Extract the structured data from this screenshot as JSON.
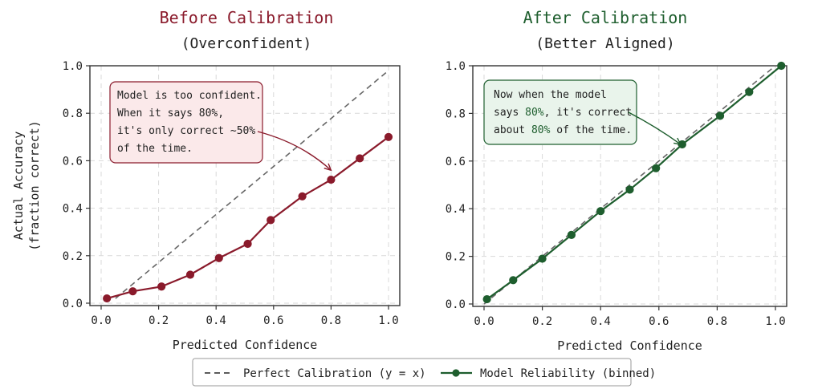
{
  "colors": {
    "before": "#8a1a2b",
    "after": "#1e5e2e",
    "perfect": "#666666",
    "grid": "#d9d9d9",
    "before_box_fill": "#fbe9ea",
    "after_box_fill": "#e9f4eb"
  },
  "chart_data": [
    {
      "type": "line",
      "title": "Before Calibration",
      "subtitle": "(Overconfident)",
      "xlabel": "Predicted Confidence",
      "ylabel": [
        "Actual Accuracy",
        "(fraction correct)"
      ],
      "xlim": [
        0,
        1.0
      ],
      "ylim": [
        0,
        1.0
      ],
      "xticks": [
        "0.0",
        "0.2",
        "0.4",
        "0.6",
        "0.8",
        "1.0"
      ],
      "yticks": [
        "0.0",
        "0.2",
        "0.4",
        "0.6",
        "0.8",
        "1.0"
      ],
      "grid": true,
      "diagonal": {
        "from": [
          0.05,
          0.02
        ],
        "to": [
          1.0,
          0.98
        ]
      },
      "series": [
        {
          "name": "Model Reliability (binned)",
          "x": [
            0.02,
            0.11,
            0.21,
            0.31,
            0.41,
            0.51,
            0.59,
            0.7,
            0.8,
            0.9,
            1.0
          ],
          "y": [
            0.02,
            0.05,
            0.07,
            0.12,
            0.19,
            0.25,
            0.35,
            0.45,
            0.52,
            0.61,
            0.7
          ]
        }
      ],
      "annotation": {
        "lines": [
          "Model is too confident.",
          "When it says 80%,",
          "it's only correct ~50%",
          "of the time."
        ],
        "arrow_to": [
          0.8,
          0.56
        ]
      }
    },
    {
      "type": "line",
      "title": "After Calibration",
      "subtitle": "(Better Aligned)",
      "xlabel": "Predicted Confidence",
      "ylabel": [],
      "xlim": [
        0,
        1.0
      ],
      "ylim": [
        0,
        1.0
      ],
      "xticks": [
        "0.0",
        "0.2",
        "0.4",
        "0.6",
        "0.8",
        "1.0"
      ],
      "yticks": [
        "0.0",
        "0.2",
        "0.4",
        "0.6",
        "0.8",
        "1.0"
      ],
      "grid": true,
      "diagonal": {
        "from": [
          0.0,
          0.0
        ],
        "to": [
          1.0,
          1.0
        ]
      },
      "series": [
        {
          "name": "Model Reliability (binned)",
          "x": [
            0.01,
            0.1,
            0.2,
            0.3,
            0.4,
            0.5,
            0.59,
            0.68,
            0.81,
            0.91,
            1.02
          ],
          "y": [
            0.02,
            0.1,
            0.19,
            0.29,
            0.39,
            0.48,
            0.57,
            0.67,
            0.79,
            0.89,
            1.0
          ]
        }
      ],
      "annotation": {
        "segments": [
          [
            {
              "t": "Now when the model",
              "hl": false
            }
          ],
          [
            {
              "t": "says ",
              "hl": false
            },
            {
              "t": "80%",
              "hl": true
            },
            {
              "t": ", it's correct",
              "hl": false
            }
          ],
          [
            {
              "t": "about ",
              "hl": false
            },
            {
              "t": "80%",
              "hl": true
            },
            {
              "t": " of the time.",
              "hl": false
            }
          ]
        ],
        "arrow_to": [
          0.675,
          0.67
        ]
      }
    }
  ],
  "legend": {
    "items": [
      {
        "label": "Perfect Calibration (y = x)",
        "style": "dashed"
      },
      {
        "label": "Model Reliability (binned)",
        "style": "line-marker"
      }
    ],
    "placement": "bottom-center"
  }
}
